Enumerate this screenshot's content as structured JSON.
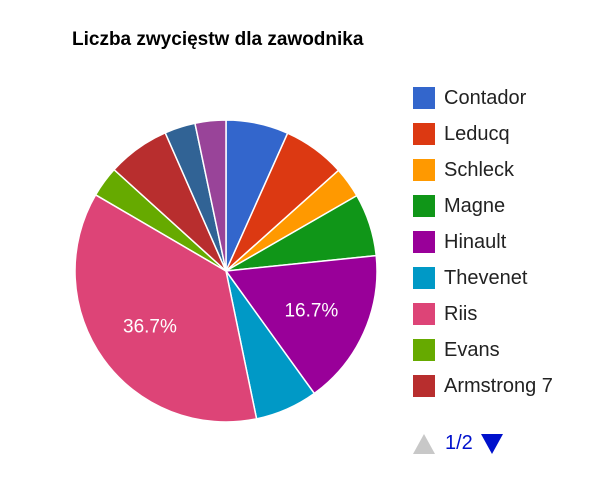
{
  "chart_data": {
    "type": "pie",
    "title": "Liczba zwycięstw dla zawodnika",
    "slices": [
      {
        "label": "Contador",
        "value": 6.7,
        "color": "#3366cc"
      },
      {
        "label": "Leducq",
        "value": 6.7,
        "color": "#dc3912"
      },
      {
        "label": "Schleck",
        "value": 3.3,
        "color": "#ff9900"
      },
      {
        "label": "Magne",
        "value": 6.7,
        "color": "#109618"
      },
      {
        "label": "Hinault",
        "value": 16.7,
        "color": "#990099"
      },
      {
        "label": "Thevenet",
        "value": 6.7,
        "color": "#0099c6"
      },
      {
        "label": "Riis",
        "value": 36.7,
        "color": "#dd4477"
      },
      {
        "label": "Evans",
        "value": 3.3,
        "color": "#66aa00"
      },
      {
        "label": "Armstrong 7",
        "value": 6.7,
        "color": "#b82e2e"
      },
      {
        "label": "",
        "value": 3.3,
        "color": "#316395"
      },
      {
        "label": "",
        "value": 3.3,
        "color": "#994499"
      }
    ],
    "slice_labels": [
      {
        "slice": 4,
        "text": "16.7%"
      },
      {
        "slice": 6,
        "text": "36.7%"
      }
    ],
    "legend": {
      "position": "right",
      "visible_entries": [
        "Contador",
        "Leducq",
        "Schleck",
        "Magne",
        "Hinault",
        "Thevenet",
        "Riis",
        "Evans",
        "Armstrong 7"
      ]
    }
  },
  "pager": {
    "text": "1/2",
    "prev_icon": "triangle-up-icon",
    "next_icon": "triangle-down-icon",
    "prev_color": "#c8c8c8",
    "next_color": "#0011cc"
  }
}
